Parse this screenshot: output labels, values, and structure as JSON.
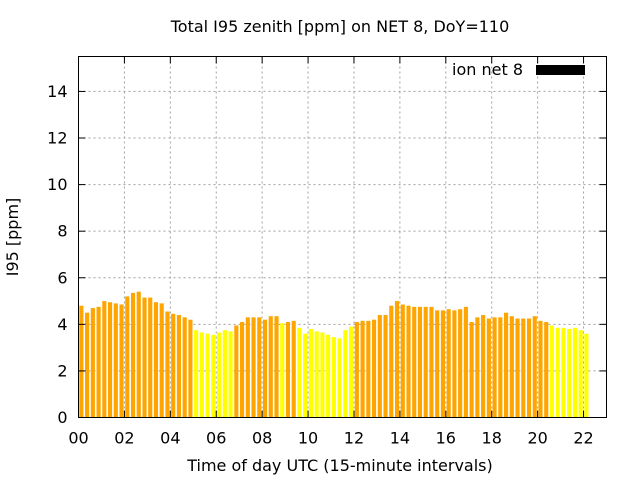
{
  "chart_data": {
    "type": "bar",
    "title": "Total I95 zenith [ppm] on NET 8, DoY=110",
    "xlabel": "Time of day UTC (15-minute intervals)",
    "ylabel": "I95 [ppm]",
    "xlim": [
      0,
      23
    ],
    "ylim": [
      0,
      15.5
    ],
    "x_ticks": [
      0,
      2,
      4,
      6,
      8,
      10,
      12,
      14,
      16,
      18,
      20,
      22
    ],
    "x_tick_labels": [
      "00",
      "02",
      "04",
      "06",
      "08",
      "10",
      "12",
      "14",
      "16",
      "18",
      "20",
      "22"
    ],
    "y_ticks": [
      0,
      2,
      4,
      6,
      8,
      10,
      12,
      14
    ],
    "y_tick_labels": [
      "0",
      "2",
      "4",
      "6",
      "8",
      "10",
      "12",
      "14"
    ],
    "grid": true,
    "legend": {
      "label": "ion net 8",
      "placement": "top-right",
      "color": "#000000"
    },
    "colors": {
      "high": "#ffa500",
      "low": "#ffff00"
    },
    "interval_hours": 0.25,
    "values": [
      4.8,
      4.5,
      4.7,
      4.75,
      5.0,
      4.95,
      4.9,
      4.85,
      5.2,
      5.35,
      5.4,
      5.15,
      5.15,
      4.95,
      4.9,
      4.55,
      4.45,
      4.4,
      4.3,
      4.2,
      3.75,
      3.65,
      3.6,
      3.55,
      3.65,
      3.75,
      3.7,
      3.95,
      4.1,
      4.3,
      4.3,
      4.3,
      4.2,
      4.35,
      4.35,
      4.05,
      4.1,
      4.15,
      3.85,
      3.6,
      3.8,
      3.7,
      3.65,
      3.55,
      3.45,
      3.4,
      3.75,
      3.9,
      4.1,
      4.15,
      4.15,
      4.2,
      4.4,
      4.4,
      4.8,
      5.0,
      4.85,
      4.8,
      4.75,
      4.75,
      4.75,
      4.75,
      4.6,
      4.6,
      4.65,
      4.6,
      4.65,
      4.75,
      4.1,
      4.3,
      4.4,
      4.25,
      4.3,
      4.3,
      4.5,
      4.35,
      4.25,
      4.25,
      4.25,
      4.35,
      4.15,
      4.1,
      3.95,
      3.85,
      3.85,
      3.8,
      3.85,
      3.75,
      3.6
    ],
    "bar_colors": [
      "high",
      "high",
      "high",
      "high",
      "high",
      "high",
      "high",
      "high",
      "high",
      "high",
      "high",
      "high",
      "high",
      "high",
      "high",
      "high",
      "high",
      "high",
      "high",
      "high",
      "low",
      "low",
      "low",
      "low",
      "low",
      "low",
      "low",
      "high",
      "high",
      "high",
      "high",
      "high",
      "high",
      "high",
      "high",
      "low",
      "high",
      "high",
      "low",
      "low",
      "low",
      "low",
      "low",
      "low",
      "low",
      "low",
      "low",
      "low",
      "high",
      "high",
      "high",
      "high",
      "high",
      "high",
      "high",
      "high",
      "high",
      "high",
      "high",
      "high",
      "high",
      "high",
      "high",
      "high",
      "high",
      "high",
      "high",
      "high",
      "high",
      "high",
      "high",
      "high",
      "high",
      "high",
      "high",
      "high",
      "high",
      "high",
      "high",
      "high",
      "high",
      "high",
      "low",
      "low",
      "low",
      "low",
      "low",
      "low",
      "low"
    ]
  }
}
